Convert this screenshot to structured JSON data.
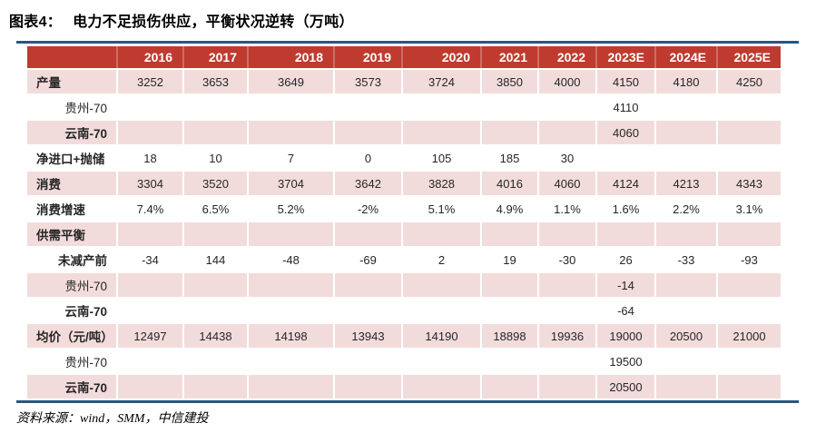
{
  "title": {
    "label": "图表4：",
    "text": "电力不足损伤供应，平衡状况逆转（万吨）"
  },
  "source": "资料来源：wind，SMM，中信建投",
  "colors": {
    "header_bg": "#bf3a2f",
    "header_text": "#ffffff",
    "header_separator": "#cd6e64",
    "row_shade": "#f2dcdb",
    "rule_line": "#27587f",
    "text": "#262626"
  },
  "chart_data": {
    "type": "table",
    "title": "电力不足损伤供应，平衡状况逆转（万吨）",
    "columns": [
      "2016",
      "2017",
      "2018",
      "2019",
      "2020",
      "2021",
      "2022",
      "2023E",
      "2024E",
      "2025E"
    ],
    "rows": [
      {
        "label": "产量",
        "indent": false,
        "bold": true,
        "shade": true,
        "values": [
          "3252",
          "3653",
          "3649",
          "3573",
          "3724",
          "3850",
          "4000",
          "4150",
          "4180",
          "4250"
        ]
      },
      {
        "label": "贵州-70",
        "indent": true,
        "bold": false,
        "shade": false,
        "values": [
          "",
          "",
          "",
          "",
          "",
          "",
          "",
          "4110",
          "",
          ""
        ]
      },
      {
        "label": "云南-70",
        "indent": true,
        "bold": true,
        "shade": true,
        "values": [
          "",
          "",
          "",
          "",
          "",
          "",
          "",
          "4060",
          "",
          ""
        ]
      },
      {
        "label": "净进口+抛储",
        "indent": false,
        "bold": true,
        "shade": false,
        "values": [
          "18",
          "10",
          "7",
          "0",
          "105",
          "185",
          "30",
          "",
          "",
          ""
        ]
      },
      {
        "label": "消费",
        "indent": false,
        "bold": true,
        "shade": true,
        "values": [
          "3304",
          "3520",
          "3704",
          "3642",
          "3828",
          "4016",
          "4060",
          "4124",
          "4213",
          "4343"
        ]
      },
      {
        "label": "消费增速",
        "indent": false,
        "bold": true,
        "shade": false,
        "values": [
          "7.4%",
          "6.5%",
          "5.2%",
          "-2%",
          "5.1%",
          "4.9%",
          "1.1%",
          "1.6%",
          "2.2%",
          "3.1%"
        ]
      },
      {
        "label": "供需平衡",
        "indent": false,
        "bold": true,
        "shade": true,
        "values": [
          "",
          "",
          "",
          "",
          "",
          "",
          "",
          "",
          "",
          ""
        ]
      },
      {
        "label": "未减产前",
        "indent": true,
        "bold": true,
        "shade": false,
        "values": [
          "-34",
          "144",
          "-48",
          "-69",
          "2",
          "19",
          "-30",
          "26",
          "-33",
          "-93"
        ]
      },
      {
        "label": "贵州-70",
        "indent": true,
        "bold": false,
        "shade": true,
        "values": [
          "",
          "",
          "",
          "",
          "",
          "",
          "",
          "-14",
          "",
          ""
        ]
      },
      {
        "label": "云南-70",
        "indent": true,
        "bold": true,
        "shade": false,
        "values": [
          "",
          "",
          "",
          "",
          "",
          "",
          "",
          "-64",
          "",
          ""
        ]
      },
      {
        "label": "均价（元/吨）",
        "indent": false,
        "bold": true,
        "shade": true,
        "values": [
          "12497",
          "14438",
          "14198",
          "13943",
          "14190",
          "18898",
          "19936",
          "19000",
          "20500",
          "21000"
        ]
      },
      {
        "label": "贵州-70",
        "indent": true,
        "bold": false,
        "shade": false,
        "values": [
          "",
          "",
          "",
          "",
          "",
          "",
          "",
          "19500",
          "",
          ""
        ]
      },
      {
        "label": "云南-70",
        "indent": true,
        "bold": true,
        "shade": true,
        "values": [
          "",
          "",
          "",
          "",
          "",
          "",
          "",
          "20500",
          "",
          ""
        ]
      }
    ]
  }
}
